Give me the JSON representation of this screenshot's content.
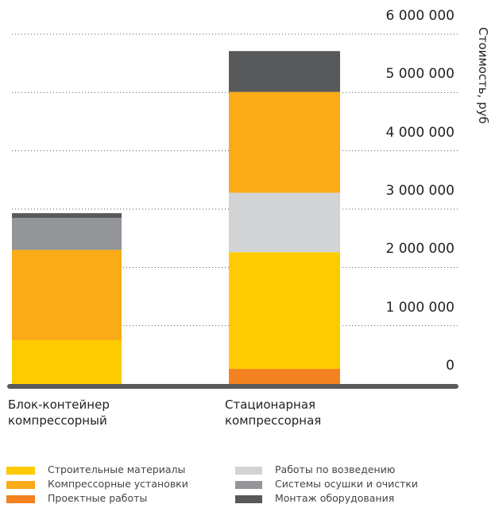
{
  "chart_data": {
    "type": "stacked_bar",
    "categories": [
      "Блок-контейнер\nкомпрессорный",
      "Стационарная\nкомпрессорная"
    ],
    "y_label": "Стоимость, руб",
    "ylim": [
      0,
      6000000
    ],
    "yticks": [
      0,
      {
        "value": 1000000,
        "label": "1 000 000"
      },
      {
        "value": 2000000,
        "label": "2 000 000"
      },
      {
        "value": 3000000,
        "label": "3 000 000"
      },
      {
        "value": 4000000,
        "label": "4 000 000"
      },
      {
        "value": 5000000,
        "label": "5 000 000"
      },
      {
        "value": 6000000,
        "label": "6 000 000"
      }
    ],
    "grid": true,
    "series": [
      {
        "name": "Проектные работы",
        "color": "#f58220",
        "values": [
          0,
          260000
        ]
      },
      {
        "name": "Строительные материалы",
        "color": "#fecb00",
        "values": [
          750000,
          2000000
        ]
      },
      {
        "name": "Работы по возведению",
        "color": "#d1d3d4",
        "values": [
          0,
          1020000
        ]
      },
      {
        "name": "Компрессорные установки",
        "color": "#fbab18",
        "values": [
          1550000,
          1730000
        ]
      },
      {
        "name": "Системы осушки и очистки",
        "color": "#939598",
        "values": [
          550000,
          0
        ]
      },
      {
        "name": "Монтаж оборудования",
        "color": "#58595b",
        "values": [
          80000,
          700000
        ]
      }
    ]
  }
}
